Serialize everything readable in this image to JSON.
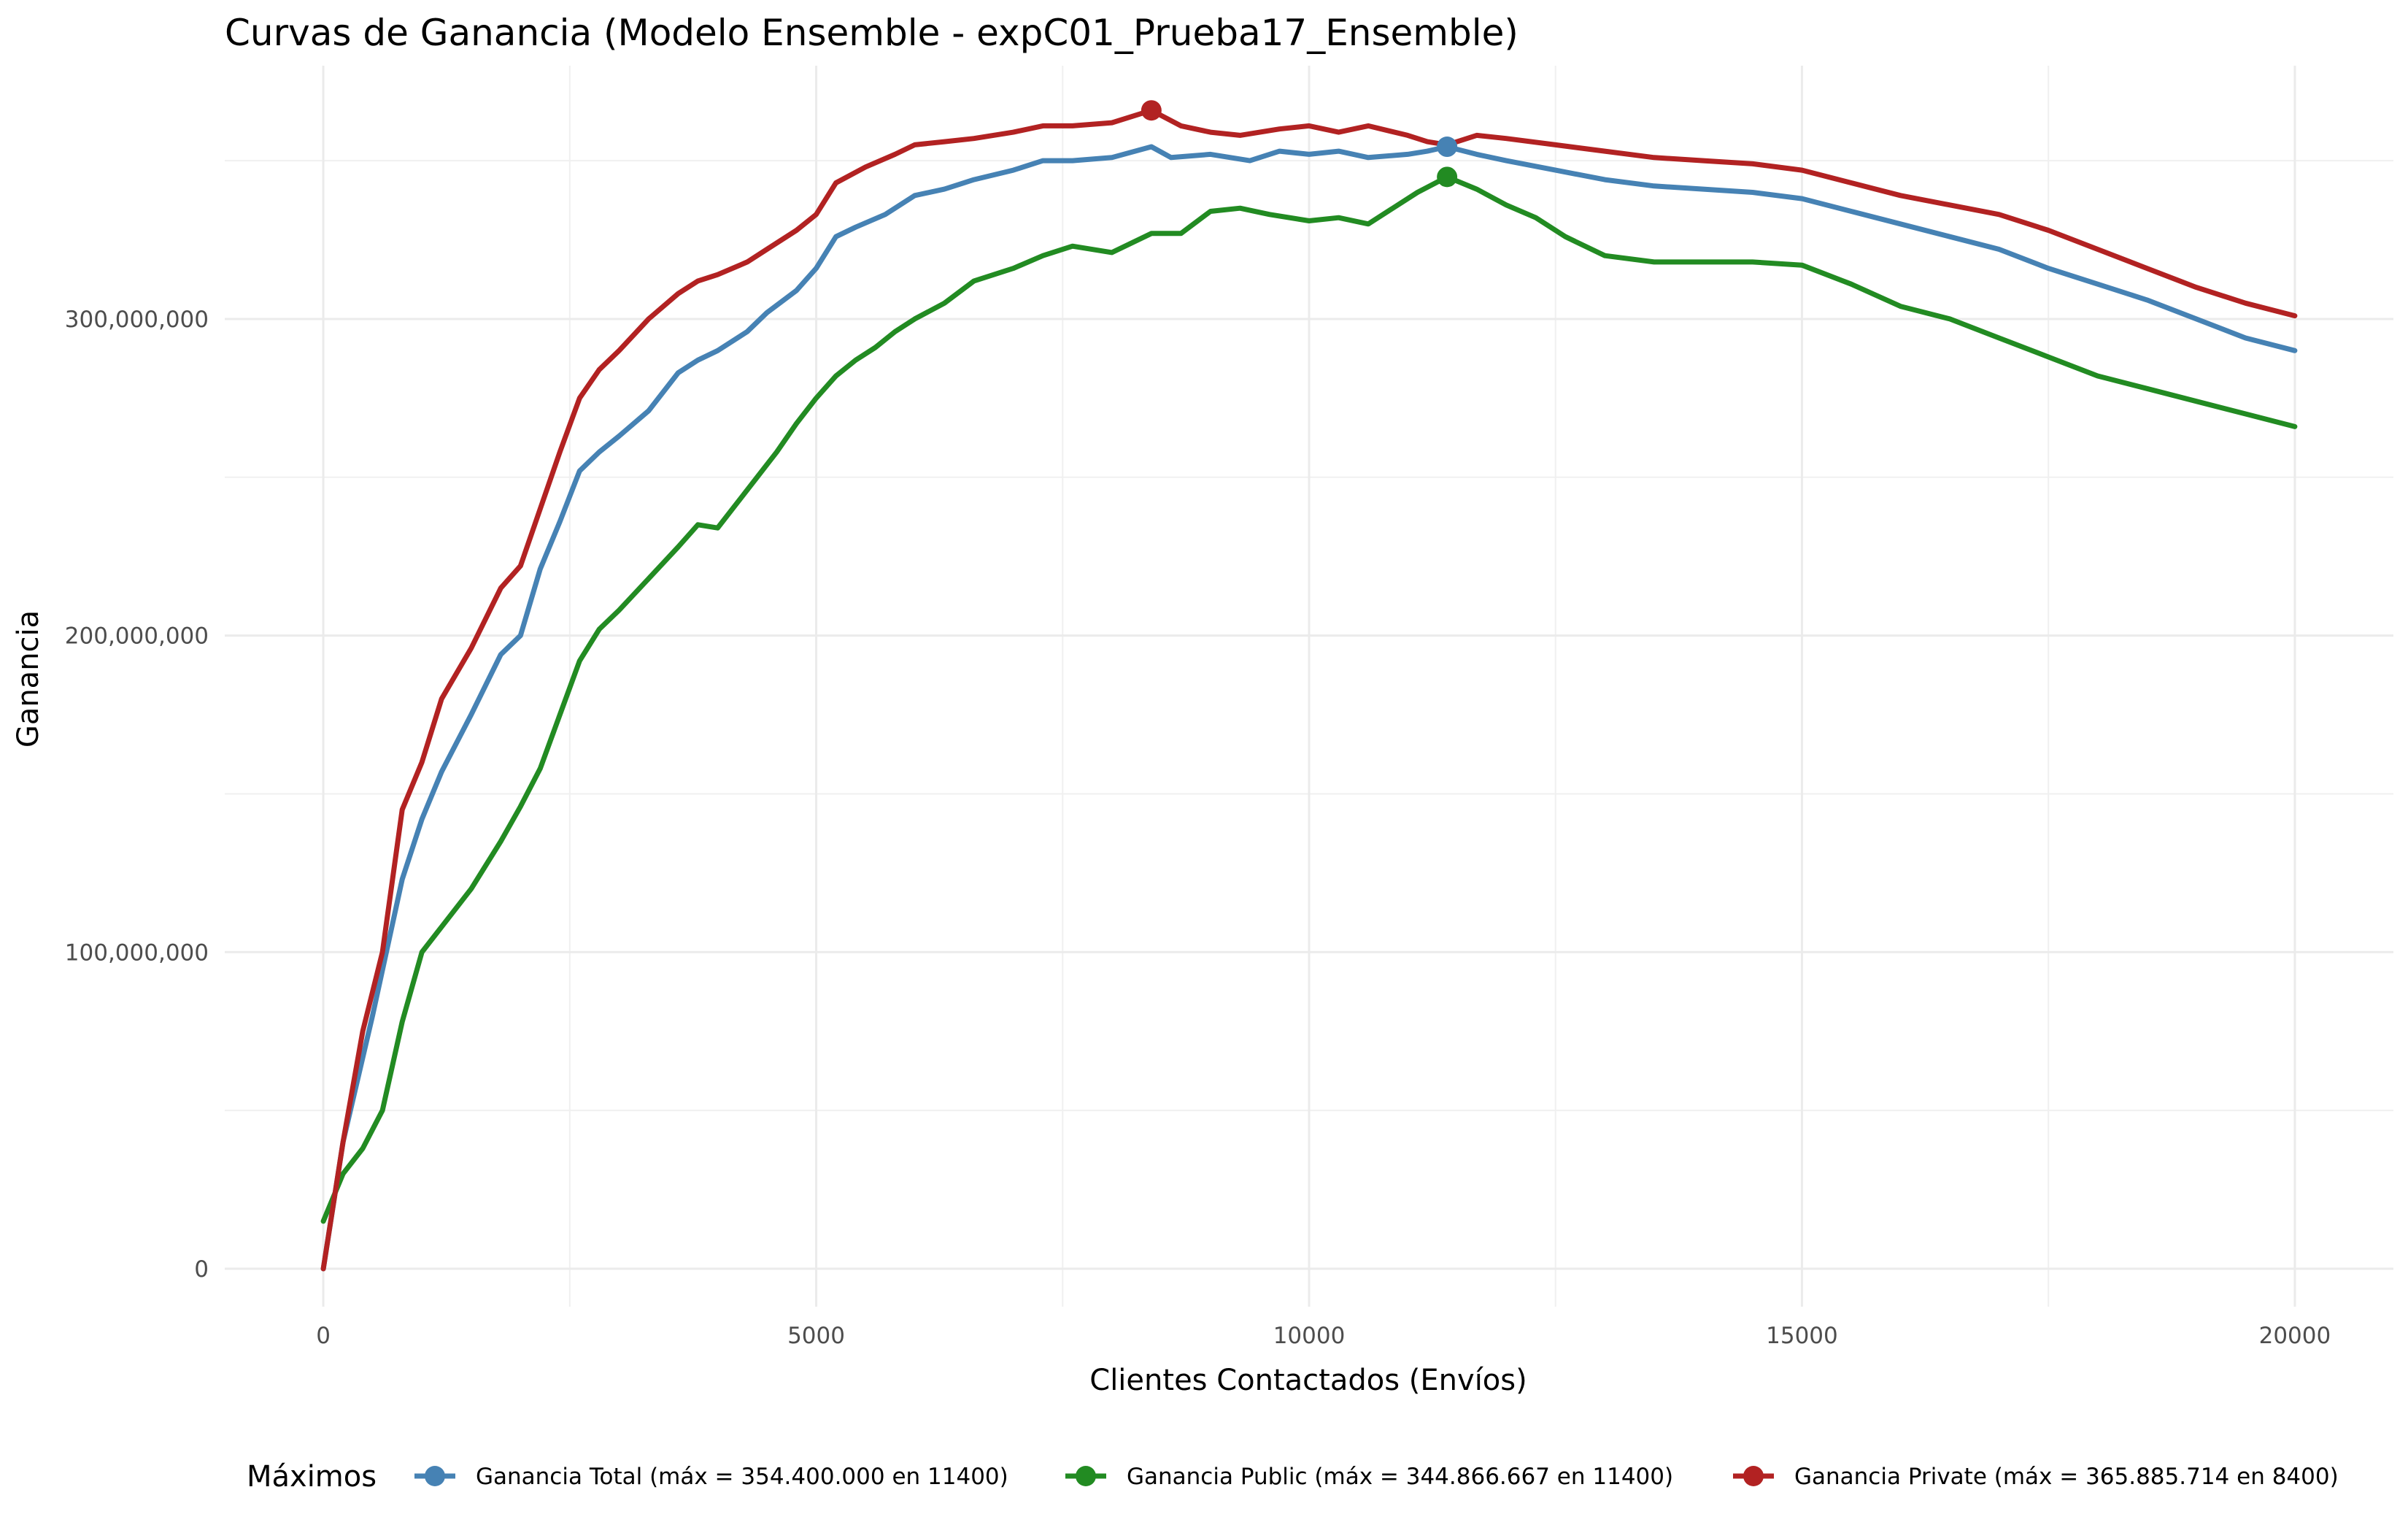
{
  "chart_data": {
    "type": "line",
    "title": "Curvas de Ganancia (Modelo Ensemble - expC01_Prueba17_Ensemble)",
    "xlabel": "Clientes Contactados (Envíos)",
    "ylabel": "Ganancia",
    "xlim": [
      -1000,
      21000
    ],
    "ylim": [
      -12000000,
      380000000
    ],
    "x_ticks": [
      0,
      5000,
      10000,
      15000,
      20000
    ],
    "x_tick_labels": [
      "0",
      "5000",
      "10000",
      "15000",
      "20000"
    ],
    "y_ticks": [
      0,
      100000000,
      200000000,
      300000000
    ],
    "y_tick_labels": [
      "0",
      "100,000,000",
      "200,000,000",
      "300,000,000"
    ],
    "grid": true,
    "legend_title": "Máximos",
    "legend_position": "bottom",
    "series": [
      {
        "name": "Ganancia Total (máx = 354.400.000 en 11400)",
        "color": "#4682B4",
        "max_point": [
          11400,
          354400000
        ],
        "x": [
          0,
          200,
          500,
          800,
          1000,
          1200,
          1500,
          1800,
          2000,
          2200,
          2400,
          2600,
          2800,
          3000,
          3300,
          3600,
          3800,
          4000,
          4300,
          4500,
          4800,
          5000,
          5200,
          5400,
          5700,
          6000,
          6300,
          6600,
          7000,
          7300,
          7600,
          8000,
          8400,
          8600,
          9000,
          9400,
          9700,
          10000,
          10300,
          10600,
          11000,
          11200,
          11400,
          11700,
          12000,
          12500,
          13000,
          13500,
          14000,
          14500,
          15000,
          15500,
          16000,
          16500,
          17000,
          17500,
          18000,
          18500,
          19000,
          19500,
          20000
        ],
        "y": [
          0,
          40000000,
          80000000,
          123000000,
          142000000,
          157000000,
          175000000,
          194000000,
          200000000,
          221000000,
          236000000,
          252000000,
          258000000,
          263000000,
          271000000,
          283000000,
          287000000,
          290000000,
          296000000,
          302000000,
          309000000,
          316000000,
          326000000,
          329000000,
          333000000,
          339000000,
          341000000,
          344000000,
          347000000,
          350000000,
          350000000,
          351000000,
          354400000,
          351000000,
          352000000,
          350000000,
          353000000,
          352000000,
          353000000,
          351000000,
          352000000,
          353000000,
          354400000,
          352000000,
          350000000,
          347000000,
          344000000,
          342000000,
          341000000,
          340000000,
          338000000,
          334000000,
          330000000,
          326000000,
          322000000,
          316000000,
          311000000,
          306000000,
          300000000,
          294000000,
          290000000
        ]
      },
      {
        "name": "Ganancia Public (máx = 344.866.667 en 11400)",
        "color": "#228B22",
        "max_point": [
          11400,
          344866667
        ],
        "x": [
          0,
          200,
          400,
          600,
          800,
          1000,
          1200,
          1500,
          1800,
          2000,
          2200,
          2400,
          2600,
          2800,
          3000,
          3300,
          3600,
          3800,
          4000,
          4200,
          4400,
          4600,
          4800,
          5000,
          5200,
          5400,
          5600,
          5800,
          6000,
          6300,
          6600,
          7000,
          7300,
          7600,
          8000,
          8400,
          8700,
          9000,
          9300,
          9600,
          10000,
          10300,
          10600,
          10900,
          11100,
          11400,
          11700,
          12000,
          12300,
          12600,
          13000,
          13500,
          14000,
          14500,
          15000,
          15500,
          16000,
          16500,
          17000,
          17500,
          18000,
          18500,
          19000,
          19500,
          20000
        ],
        "y": [
          15000000,
          30000000,
          38000000,
          50000000,
          78000000,
          100000000,
          108000000,
          120000000,
          135000000,
          146000000,
          158000000,
          175000000,
          192000000,
          202000000,
          208000000,
          218000000,
          228000000,
          235000000,
          234000000,
          242000000,
          250000000,
          258000000,
          267000000,
          275000000,
          282000000,
          287000000,
          291000000,
          296000000,
          300000000,
          305000000,
          312000000,
          316000000,
          320000000,
          323000000,
          321000000,
          327000000,
          327000000,
          334000000,
          335000000,
          333000000,
          331000000,
          332000000,
          330000000,
          336000000,
          340000000,
          344866667,
          341000000,
          336000000,
          332000000,
          326000000,
          320000000,
          318000000,
          318000000,
          318000000,
          317000000,
          311000000,
          304000000,
          300000000,
          294000000,
          288000000,
          282000000,
          278000000,
          274000000,
          270000000,
          266000000
        ]
      },
      {
        "name": "Ganancia Private (máx = 365.885.714 en 8400)",
        "color": "#B22222",
        "max_point": [
          8400,
          365885714
        ],
        "x": [
          0,
          200,
          400,
          600,
          800,
          1000,
          1200,
          1500,
          1800,
          2000,
          2200,
          2400,
          2600,
          2800,
          3000,
          3300,
          3600,
          3800,
          4000,
          4300,
          4500,
          4800,
          5000,
          5200,
          5500,
          5800,
          6000,
          6300,
          6600,
          7000,
          7300,
          7600,
          8000,
          8400,
          8700,
          9000,
          9300,
          9700,
          10000,
          10300,
          10600,
          11000,
          11200,
          11400,
          11700,
          12000,
          12500,
          13000,
          13500,
          14000,
          14500,
          15000,
          15500,
          16000,
          16500,
          17000,
          17500,
          18000,
          18500,
          19000,
          19500,
          20000
        ],
        "y": [
          0,
          40000000,
          75000000,
          100000000,
          145000000,
          160000000,
          180000000,
          196000000,
          215000000,
          222000000,
          240000000,
          258000000,
          275000000,
          284000000,
          290000000,
          300000000,
          308000000,
          312000000,
          314000000,
          318000000,
          322000000,
          328000000,
          333000000,
          343000000,
          348000000,
          352000000,
          355000000,
          356000000,
          357000000,
          359000000,
          361000000,
          361000000,
          362000000,
          365885714,
          361000000,
          359000000,
          358000000,
          360000000,
          361000000,
          359000000,
          361000000,
          358000000,
          356000000,
          355000000,
          358000000,
          357000000,
          355000000,
          353000000,
          351000000,
          350000000,
          349000000,
          347000000,
          343000000,
          339000000,
          336000000,
          333000000,
          328000000,
          322000000,
          316000000,
          310000000,
          305000000,
          301000000
        ]
      }
    ]
  }
}
